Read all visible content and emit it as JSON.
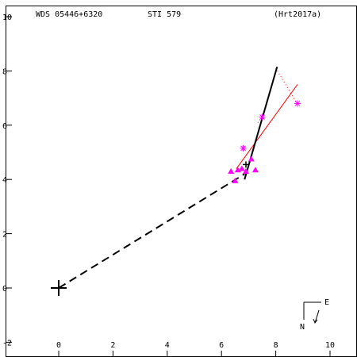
{
  "header": {
    "wds_id": "WDS 05446+6320",
    "disc_id": "STI 579",
    "reference": "(Hrt2017a)"
  },
  "compass": {
    "east_label": "E",
    "north_label": "N"
  },
  "colors": {
    "axes": "#000000",
    "orbit": "#000000",
    "fit_line": "#ff0000",
    "observations": "#ff00ff"
  },
  "chart_data": {
    "type": "scatter",
    "xlim": [
      -2.2,
      11
    ],
    "ylim": [
      -2.2,
      10.5
    ],
    "x_ticks": [
      0,
      2,
      4,
      6,
      8,
      10
    ],
    "y_ticks": [
      -2,
      0,
      2,
      4,
      6,
      8,
      10
    ],
    "x_tick_labels": [
      "0",
      "2",
      "4",
      "6",
      "8",
      "10"
    ],
    "y_tick_labels": [
      "-2",
      "0",
      "2",
      "4",
      "6",
      "8",
      "10"
    ],
    "primary": [
      0,
      0
    ],
    "solid_path": [
      [
        8.05,
        8.15
      ],
      [
        6.85,
        4.0
      ]
    ],
    "dashed_path": [
      [
        0,
        0
      ],
      [
        6.85,
        4.2
      ]
    ],
    "fit_line": [
      [
        6.55,
        4.4
      ],
      [
        8.8,
        7.5
      ]
    ],
    "dotted_links": [
      [
        [
          7.5,
          6.3
        ],
        [
          7.3,
          6.05
        ]
      ],
      [
        [
          8.0,
          8.1
        ],
        [
          8.75,
          6.85
        ]
      ]
    ],
    "triangles": [
      [
        6.5,
        3.95
      ],
      [
        6.35,
        4.3
      ],
      [
        6.6,
        4.35
      ],
      [
        6.75,
        4.4
      ],
      [
        7.1,
        4.75
      ],
      [
        7.25,
        4.35
      ],
      [
        6.9,
        4.3
      ]
    ],
    "asterisks": [
      [
        6.8,
        5.15
      ],
      [
        7.5,
        6.3
      ],
      [
        8.8,
        6.8
      ]
    ],
    "current_position": [
      6.9,
      4.55
    ]
  }
}
